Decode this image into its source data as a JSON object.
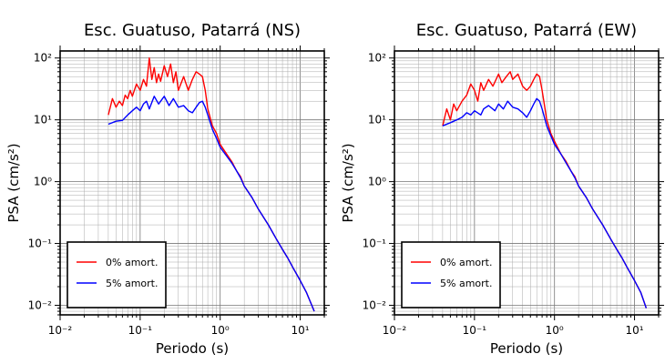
{
  "chart_data": [
    {
      "type": "line",
      "title": "Esc. Guatuso, Patarrá (NS)",
      "xlabel": "Periodo (s)",
      "ylabel": "PSA (cm/s²)",
      "xscale": "log",
      "yscale": "log",
      "xlim": [
        0.01,
        20
      ],
      "ylim": [
        0.007,
        130
      ],
      "grid": true,
      "legend_position": "bottom-left",
      "x_ticks": [
        "10⁻²",
        "10⁻¹",
        "10⁰",
        "10¹"
      ],
      "y_ticks": [
        "10⁻²",
        "10⁻¹",
        "10⁰",
        "10¹",
        "10²"
      ],
      "series": [
        {
          "name": "0% amort.",
          "color": "#ff0000",
          "points": [
            [
              0.04,
              12
            ],
            [
              0.045,
              22
            ],
            [
              0.05,
              16
            ],
            [
              0.055,
              20
            ],
            [
              0.06,
              17
            ],
            [
              0.065,
              25
            ],
            [
              0.07,
              22
            ],
            [
              0.075,
              30
            ],
            [
              0.08,
              24
            ],
            [
              0.09,
              38
            ],
            [
              0.1,
              30
            ],
            [
              0.11,
              45
            ],
            [
              0.12,
              35
            ],
            [
              0.13,
              100
            ],
            [
              0.14,
              45
            ],
            [
              0.15,
              70
            ],
            [
              0.16,
              40
            ],
            [
              0.17,
              55
            ],
            [
              0.18,
              42
            ],
            [
              0.2,
              75
            ],
            [
              0.22,
              50
            ],
            [
              0.24,
              80
            ],
            [
              0.26,
              40
            ],
            [
              0.28,
              60
            ],
            [
              0.3,
              30
            ],
            [
              0.35,
              50
            ],
            [
              0.4,
              30
            ],
            [
              0.45,
              45
            ],
            [
              0.5,
              60
            ],
            [
              0.55,
              55
            ],
            [
              0.6,
              50
            ],
            [
              0.65,
              30
            ],
            [
              0.7,
              15
            ],
            [
              0.8,
              8
            ],
            [
              0.9,
              6
            ],
            [
              1.0,
              4
            ],
            [
              1.2,
              2.8
            ],
            [
              1.4,
              2.1
            ],
            [
              1.6,
              1.5
            ],
            [
              1.8,
              1.2
            ],
            [
              2.0,
              0.85
            ],
            [
              2.5,
              0.55
            ],
            [
              3,
              0.36
            ],
            [
              4,
              0.2
            ],
            [
              5,
              0.12
            ],
            [
              6,
              0.08
            ],
            [
              7,
              0.058
            ],
            [
              8,
              0.042
            ],
            [
              10,
              0.025
            ],
            [
              12,
              0.016
            ],
            [
              15,
              0.008
            ]
          ]
        },
        {
          "name": "5% amort.",
          "color": "#0000ff",
          "points": [
            [
              0.04,
              8.5
            ],
            [
              0.05,
              9.5
            ],
            [
              0.06,
              9.8
            ],
            [
              0.07,
              12
            ],
            [
              0.08,
              14
            ],
            [
              0.09,
              16
            ],
            [
              0.1,
              14
            ],
            [
              0.11,
              18
            ],
            [
              0.12,
              20
            ],
            [
              0.13,
              15
            ],
            [
              0.15,
              24
            ],
            [
              0.17,
              18
            ],
            [
              0.2,
              24
            ],
            [
              0.23,
              17
            ],
            [
              0.26,
              22
            ],
            [
              0.3,
              16
            ],
            [
              0.35,
              17
            ],
            [
              0.4,
              14
            ],
            [
              0.45,
              13
            ],
            [
              0.5,
              16
            ],
            [
              0.55,
              19
            ],
            [
              0.6,
              20
            ],
            [
              0.65,
              16
            ],
            [
              0.7,
              12
            ],
            [
              0.8,
              7
            ],
            [
              0.9,
              5
            ],
            [
              1.0,
              3.6
            ],
            [
              1.2,
              2.6
            ],
            [
              1.4,
              2.0
            ],
            [
              1.6,
              1.5
            ],
            [
              1.8,
              1.15
            ],
            [
              2.0,
              0.85
            ],
            [
              2.5,
              0.55
            ],
            [
              3,
              0.36
            ],
            [
              4,
              0.2
            ],
            [
              5,
              0.12
            ],
            [
              6,
              0.08
            ],
            [
              7,
              0.058
            ],
            [
              8,
              0.042
            ],
            [
              10,
              0.025
            ],
            [
              12,
              0.016
            ],
            [
              15,
              0.008
            ]
          ]
        }
      ]
    },
    {
      "type": "line",
      "title": "Esc. Guatuso, Patarrá (EW)",
      "xlabel": "Periodo (s)",
      "ylabel": "PSA (cm/s²)",
      "xscale": "log",
      "yscale": "log",
      "xlim": [
        0.01,
        20
      ],
      "ylim": [
        0.007,
        130
      ],
      "grid": true,
      "legend_position": "bottom-left",
      "x_ticks": [
        "10⁻²",
        "10⁻¹",
        "10⁰",
        "10¹"
      ],
      "y_ticks": [
        "10⁻²",
        "10⁻¹",
        "10⁰",
        "10¹",
        "10²"
      ],
      "series": [
        {
          "name": "0% amort.",
          "color": "#ff0000",
          "points": [
            [
              0.04,
              8
            ],
            [
              0.045,
              15
            ],
            [
              0.05,
              10
            ],
            [
              0.055,
              18
            ],
            [
              0.06,
              14
            ],
            [
              0.07,
              20
            ],
            [
              0.08,
              25
            ],
            [
              0.09,
              38
            ],
            [
              0.1,
              30
            ],
            [
              0.11,
              20
            ],
            [
              0.12,
              40
            ],
            [
              0.13,
              30
            ],
            [
              0.15,
              45
            ],
            [
              0.17,
              35
            ],
            [
              0.2,
              55
            ],
            [
              0.22,
              40
            ],
            [
              0.25,
              50
            ],
            [
              0.28,
              60
            ],
            [
              0.3,
              45
            ],
            [
              0.35,
              55
            ],
            [
              0.4,
              35
            ],
            [
              0.45,
              30
            ],
            [
              0.5,
              35
            ],
            [
              0.55,
              45
            ],
            [
              0.6,
              55
            ],
            [
              0.65,
              50
            ],
            [
              0.7,
              30
            ],
            [
              0.8,
              10
            ],
            [
              0.9,
              6
            ],
            [
              1.0,
              4.5
            ],
            [
              1.2,
              2.8
            ],
            [
              1.4,
              2.1
            ],
            [
              1.6,
              1.5
            ],
            [
              1.8,
              1.2
            ],
            [
              2.0,
              0.85
            ],
            [
              2.5,
              0.55
            ],
            [
              3,
              0.36
            ],
            [
              4,
              0.2
            ],
            [
              5,
              0.12
            ],
            [
              6,
              0.08
            ],
            [
              7,
              0.058
            ],
            [
              8,
              0.042
            ],
            [
              10,
              0.025
            ],
            [
              12,
              0.016
            ],
            [
              14,
              0.009
            ]
          ]
        },
        {
          "name": "5% amort.",
          "color": "#0000ff",
          "points": [
            [
              0.04,
              8
            ],
            [
              0.05,
              9
            ],
            [
              0.06,
              10
            ],
            [
              0.07,
              11
            ],
            [
              0.08,
              13
            ],
            [
              0.09,
              12
            ],
            [
              0.1,
              14
            ],
            [
              0.12,
              12
            ],
            [
              0.13,
              15
            ],
            [
              0.15,
              17
            ],
            [
              0.18,
              14
            ],
            [
              0.2,
              18
            ],
            [
              0.23,
              15
            ],
            [
              0.26,
              20
            ],
            [
              0.3,
              16
            ],
            [
              0.35,
              15
            ],
            [
              0.4,
              13
            ],
            [
              0.45,
              11
            ],
            [
              0.5,
              14
            ],
            [
              0.55,
              18
            ],
            [
              0.6,
              22
            ],
            [
              0.65,
              20
            ],
            [
              0.7,
              15
            ],
            [
              0.8,
              8
            ],
            [
              0.9,
              5.5
            ],
            [
              1.0,
              4
            ],
            [
              1.2,
              2.8
            ],
            [
              1.4,
              2.0
            ],
            [
              1.6,
              1.5
            ],
            [
              1.8,
              1.15
            ],
            [
              2.0,
              0.85
            ],
            [
              2.5,
              0.55
            ],
            [
              3,
              0.36
            ],
            [
              4,
              0.2
            ],
            [
              5,
              0.12
            ],
            [
              6,
              0.08
            ],
            [
              7,
              0.058
            ],
            [
              8,
              0.042
            ],
            [
              10,
              0.025
            ],
            [
              12,
              0.016
            ],
            [
              14,
              0.009
            ]
          ]
        }
      ]
    }
  ]
}
